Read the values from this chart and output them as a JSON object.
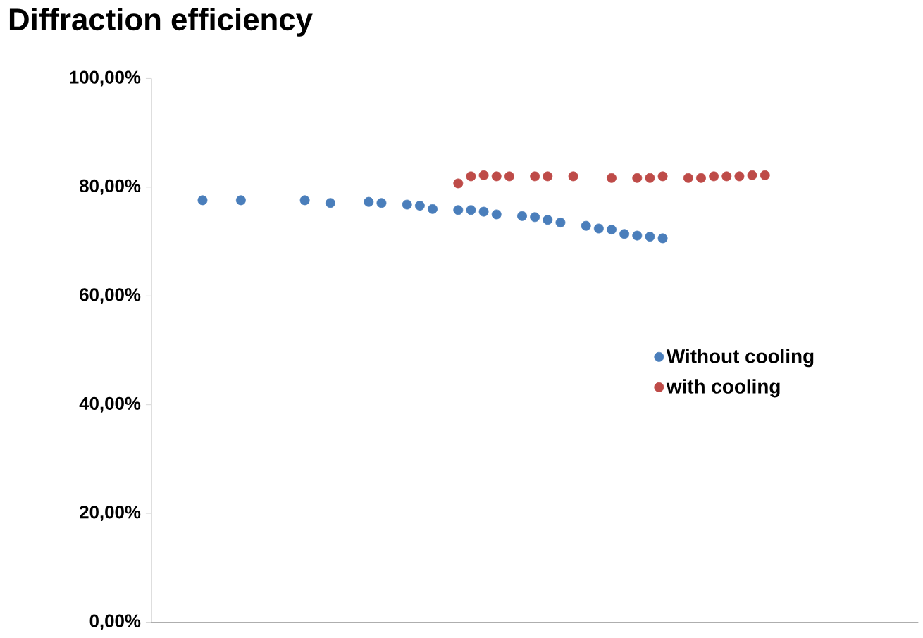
{
  "chart_data": {
    "type": "scatter",
    "title": "Diffraction efficiency",
    "categories": [
      null,
      null,
      null,
      null,
      null,
      null,
      null,
      null,
      null,
      null,
      null,
      null,
      null,
      null,
      null,
      null,
      null,
      null,
      null,
      null,
      null,
      null,
      null,
      null,
      null,
      null,
      null,
      null,
      null,
      null,
      null,
      null,
      null,
      null,
      null,
      null,
      null,
      null,
      null,
      null,
      null,
      null,
      null,
      null,
      null,
      null,
      null,
      null,
      null,
      null,
      null,
      null,
      null,
      null,
      null,
      null,
      null,
      null,
      null,
      null,
      null
    ],
    "ylim": [
      0,
      100
    ],
    "yticks": [
      {
        "value": 0,
        "label": "0,00%"
      },
      {
        "value": 20,
        "label": "20,00%"
      },
      {
        "value": 40,
        "label": "40,00%"
      },
      {
        "value": 60,
        "label": "60,00%"
      },
      {
        "value": 80,
        "label": "80,00%"
      },
      {
        "value": 100,
        "label": "100,00%"
      }
    ],
    "tick_labels": "y",
    "legend": "right",
    "series": [
      {
        "name": "Without cooling",
        "color": "#4a7ebb",
        "values": [
          null,
          null,
          null,
          null,
          77.6,
          null,
          null,
          77.6,
          null,
          null,
          null,
          null,
          77.6,
          null,
          77.1,
          null,
          null,
          77.3,
          77.1,
          null,
          76.8,
          76.6,
          76.0,
          null,
          75.8,
          75.8,
          75.5,
          75.0,
          null,
          74.7,
          74.5,
          74.0,
          73.5,
          null,
          72.9,
          72.4,
          72.2,
          71.4,
          71.1,
          70.9,
          70.6,
          null,
          null,
          null,
          null,
          null,
          null,
          null,
          null,
          null,
          null,
          null,
          null,
          null,
          null,
          null,
          null,
          null,
          null,
          null,
          null
        ]
      },
      {
        "name": "with cooling",
        "color": "#be4b48",
        "values": [
          null,
          null,
          null,
          null,
          null,
          null,
          null,
          null,
          null,
          null,
          null,
          null,
          null,
          null,
          null,
          null,
          null,
          null,
          null,
          null,
          null,
          null,
          null,
          null,
          80.7,
          82.0,
          82.2,
          82.0,
          82.0,
          null,
          82.0,
          82.0,
          null,
          82.0,
          null,
          null,
          81.7,
          null,
          81.7,
          81.7,
          82.0,
          null,
          81.7,
          81.7,
          82.0,
          82.0,
          82.0,
          82.2,
          82.2,
          null,
          null,
          null,
          null,
          null,
          null,
          null,
          null,
          null,
          null,
          null,
          null
        ]
      }
    ]
  }
}
